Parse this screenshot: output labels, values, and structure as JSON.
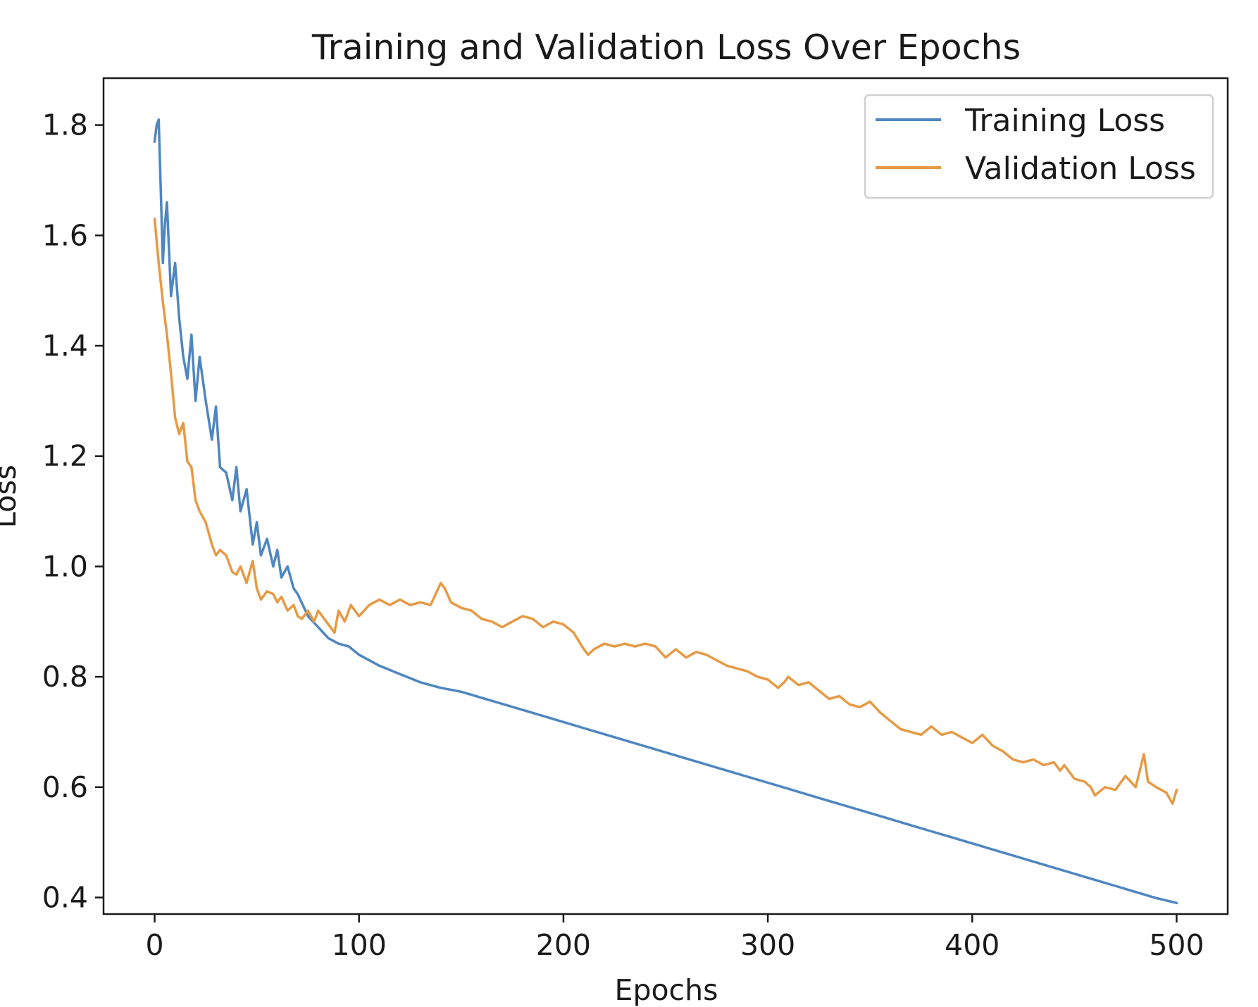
{
  "chart_data": {
    "type": "line",
    "title": "Training and Validation Loss Over Epochs",
    "xlabel": "Epochs",
    "ylabel": "Loss",
    "xlim": [
      -25,
      525
    ],
    "ylim": [
      0.37,
      1.885
    ],
    "xticks": [
      0,
      100,
      200,
      300,
      400,
      500
    ],
    "yticks": [
      0.4,
      0.6,
      0.8,
      1.0,
      1.2,
      1.4,
      1.6,
      1.8
    ],
    "xtick_labels": [
      "0",
      "100",
      "200",
      "300",
      "400",
      "500"
    ],
    "ytick_labels": [
      "0.4",
      "0.6",
      "0.8",
      "1.0",
      "1.2",
      "1.4",
      "1.6",
      "1.8"
    ],
    "grid": false,
    "legend": "top-right",
    "series": [
      {
        "name": "Training Loss",
        "color": "#4f86c0",
        "x": [
          0,
          1,
          2,
          3,
          4,
          5,
          6,
          8,
          10,
          12,
          14,
          16,
          18,
          20,
          22,
          25,
          28,
          30,
          32,
          35,
          38,
          40,
          42,
          45,
          48,
          50,
          52,
          55,
          58,
          60,
          62,
          65,
          68,
          70,
          75,
          80,
          85,
          90,
          95,
          100,
          110,
          120,
          130,
          140,
          150,
          160,
          170,
          180,
          190,
          200,
          210,
          220,
          230,
          240,
          250,
          260,
          270,
          280,
          290,
          300,
          310,
          320,
          330,
          340,
          350,
          360,
          370,
          380,
          390,
          400,
          410,
          420,
          430,
          440,
          450,
          460,
          470,
          480,
          490,
          500
        ],
        "y": [
          1.77,
          1.8,
          1.81,
          1.68,
          1.55,
          1.62,
          1.66,
          1.49,
          1.55,
          1.45,
          1.38,
          1.34,
          1.42,
          1.3,
          1.38,
          1.3,
          1.23,
          1.29,
          1.18,
          1.17,
          1.12,
          1.18,
          1.1,
          1.14,
          1.04,
          1.08,
          1.02,
          1.05,
          1.0,
          1.03,
          0.98,
          1.0,
          0.96,
          0.95,
          0.91,
          0.89,
          0.87,
          0.86,
          0.855,
          0.84,
          0.82,
          0.805,
          0.79,
          0.78,
          0.773,
          0.762,
          0.751,
          0.74,
          0.729,
          0.718,
          0.707,
          0.696,
          0.685,
          0.674,
          0.663,
          0.652,
          0.641,
          0.63,
          0.619,
          0.608,
          0.597,
          0.586,
          0.575,
          0.564,
          0.553,
          0.542,
          0.531,
          0.52,
          0.509,
          0.498,
          0.487,
          0.476,
          0.465,
          0.454,
          0.443,
          0.432,
          0.421,
          0.41,
          0.399,
          0.39
        ]
      },
      {
        "name": "Validation Loss",
        "color": "#e69a45",
        "x": [
          0,
          2,
          4,
          6,
          8,
          10,
          12,
          14,
          16,
          18,
          20,
          22,
          25,
          28,
          30,
          32,
          35,
          38,
          40,
          42,
          45,
          48,
          50,
          52,
          55,
          58,
          60,
          62,
          65,
          68,
          70,
          72,
          75,
          78,
          80,
          82,
          85,
          88,
          90,
          93,
          96,
          100,
          105,
          110,
          115,
          120,
          125,
          130,
          135,
          140,
          142,
          145,
          150,
          155,
          160,
          165,
          170,
          175,
          180,
          185,
          190,
          195,
          200,
          205,
          210,
          212,
          215,
          220,
          225,
          230,
          235,
          240,
          245,
          250,
          255,
          260,
          265,
          270,
          275,
          280,
          285,
          290,
          295,
          300,
          305,
          308,
          310,
          315,
          320,
          325,
          330,
          335,
          340,
          345,
          350,
          355,
          360,
          365,
          370,
          375,
          380,
          385,
          390,
          395,
          400,
          405,
          410,
          415,
          420,
          425,
          430,
          435,
          440,
          443,
          445,
          450,
          455,
          458,
          460,
          465,
          470,
          475,
          480,
          484,
          486,
          490,
          495,
          498,
          500
        ],
        "y": [
          1.63,
          1.55,
          1.48,
          1.42,
          1.35,
          1.27,
          1.24,
          1.26,
          1.19,
          1.18,
          1.12,
          1.1,
          1.08,
          1.04,
          1.02,
          1.03,
          1.02,
          0.99,
          0.985,
          1.0,
          0.97,
          1.01,
          0.96,
          0.94,
          0.955,
          0.95,
          0.935,
          0.945,
          0.92,
          0.93,
          0.91,
          0.905,
          0.92,
          0.9,
          0.92,
          0.91,
          0.895,
          0.88,
          0.92,
          0.9,
          0.93,
          0.91,
          0.93,
          0.94,
          0.93,
          0.94,
          0.93,
          0.935,
          0.93,
          0.97,
          0.96,
          0.935,
          0.925,
          0.92,
          0.905,
          0.9,
          0.89,
          0.9,
          0.91,
          0.905,
          0.89,
          0.9,
          0.895,
          0.88,
          0.85,
          0.84,
          0.85,
          0.86,
          0.855,
          0.86,
          0.855,
          0.86,
          0.855,
          0.835,
          0.85,
          0.835,
          0.845,
          0.84,
          0.83,
          0.82,
          0.815,
          0.81,
          0.8,
          0.795,
          0.78,
          0.79,
          0.8,
          0.785,
          0.79,
          0.775,
          0.76,
          0.765,
          0.75,
          0.745,
          0.755,
          0.735,
          0.72,
          0.705,
          0.7,
          0.695,
          0.71,
          0.695,
          0.7,
          0.69,
          0.68,
          0.695,
          0.675,
          0.665,
          0.65,
          0.645,
          0.65,
          0.64,
          0.645,
          0.63,
          0.64,
          0.615,
          0.61,
          0.6,
          0.585,
          0.6,
          0.595,
          0.62,
          0.6,
          0.66,
          0.61,
          0.6,
          0.59,
          0.57,
          0.595
        ]
      }
    ]
  }
}
